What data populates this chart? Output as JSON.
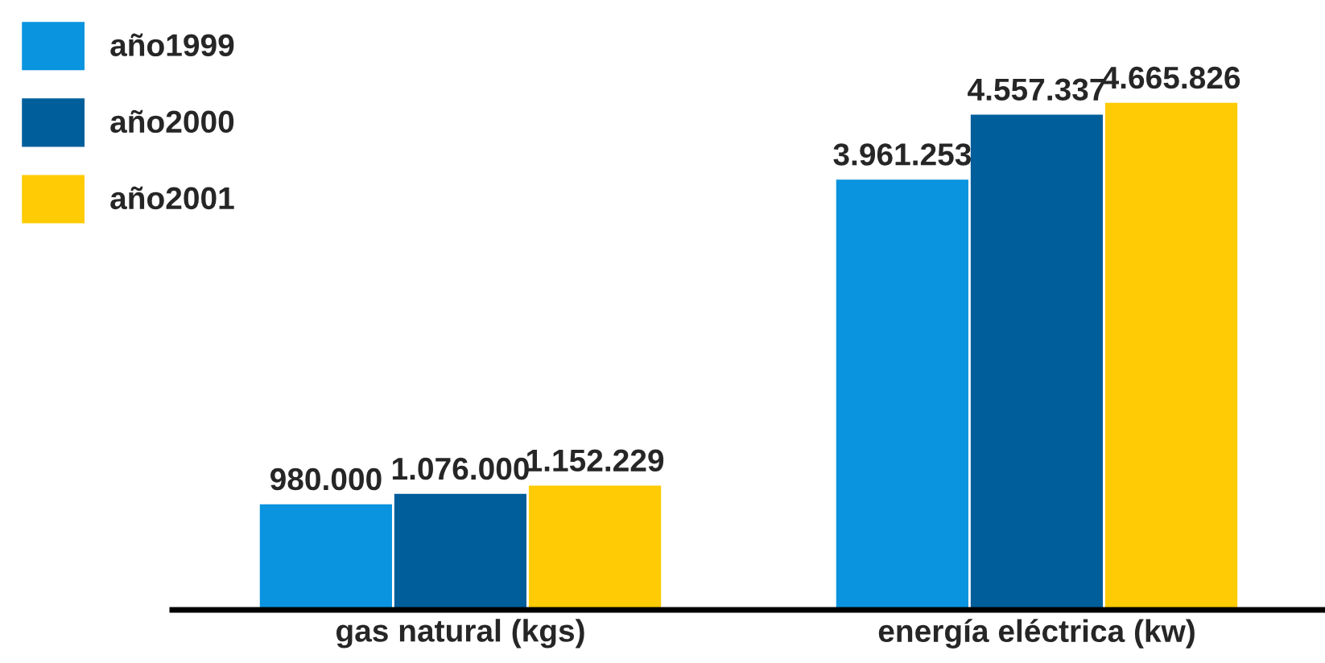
{
  "chart_data": {
    "type": "bar",
    "categories": [
      "gas natural (kgs)",
      "energía eléctrica (kw)"
    ],
    "series": [
      {
        "name": "año1999",
        "color": "#0a94df",
        "values": [
          980000,
          3961253
        ],
        "value_labels": [
          "980.000",
          "3.961.253"
        ]
      },
      {
        "name": "año2000",
        "color": "#005e9b",
        "values": [
          1076000,
          4557337
        ],
        "value_labels": [
          "1.076.000",
          "4.557.337"
        ]
      },
      {
        "name": "año2001",
        "color": "#ffcb05",
        "values": [
          1152229,
          4665826
        ],
        "value_labels": [
          "1.152.229",
          "4.665.826"
        ]
      }
    ],
    "legend": "top left",
    "grid": false
  }
}
